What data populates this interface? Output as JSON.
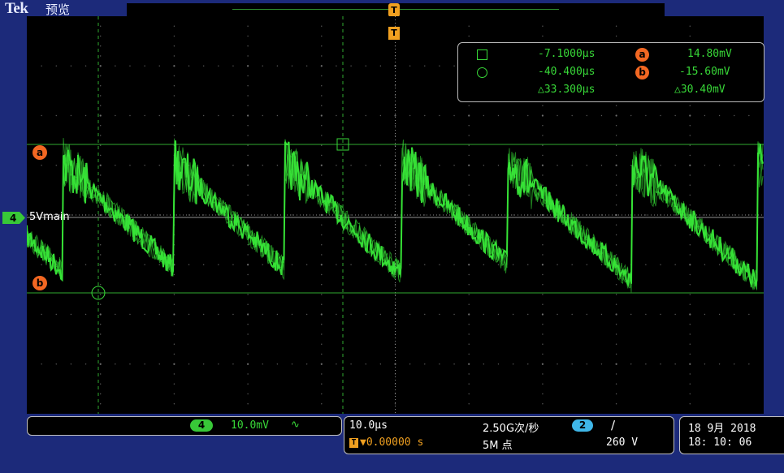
{
  "header": {
    "brand": "Tek",
    "mode": "预览",
    "trigger_top_label": "T",
    "trigger_marker_label": "T"
  },
  "cursors": {
    "cursor1_time": "-7.1000μs",
    "cursor2_time": "-40.400μs",
    "delta_time": "△33.300μs",
    "a_label": "a",
    "b_label": "b",
    "a_voltage": "14.80mV",
    "b_voltage": "-15.60mV",
    "delta_voltage": "△30.40mV",
    "ref_a_label": "a",
    "ref_b_label": "b"
  },
  "channel": {
    "number": "4",
    "label": "5Vmain",
    "scale": "10.0mV",
    "coupling_icon": "∿",
    "trace_color": "#38e838"
  },
  "timebase": {
    "scale": "10.0μs",
    "delay": "▼0.00000 s",
    "sample_rate": "2.50G次/秒",
    "record_length": "5M 点"
  },
  "trigger": {
    "source": "2",
    "slope_icon": "∕",
    "level": "260 V"
  },
  "datetime": {
    "date": "18 9月  2018",
    "time": "18: 10: 06"
  },
  "colors": {
    "screen_bg": "#000000",
    "frame_bg": "#1c2a7a",
    "cursor_orange": "#f26722",
    "trigger_orange": "#f0a020",
    "ch2_blue": "#3fb6e8"
  }
}
